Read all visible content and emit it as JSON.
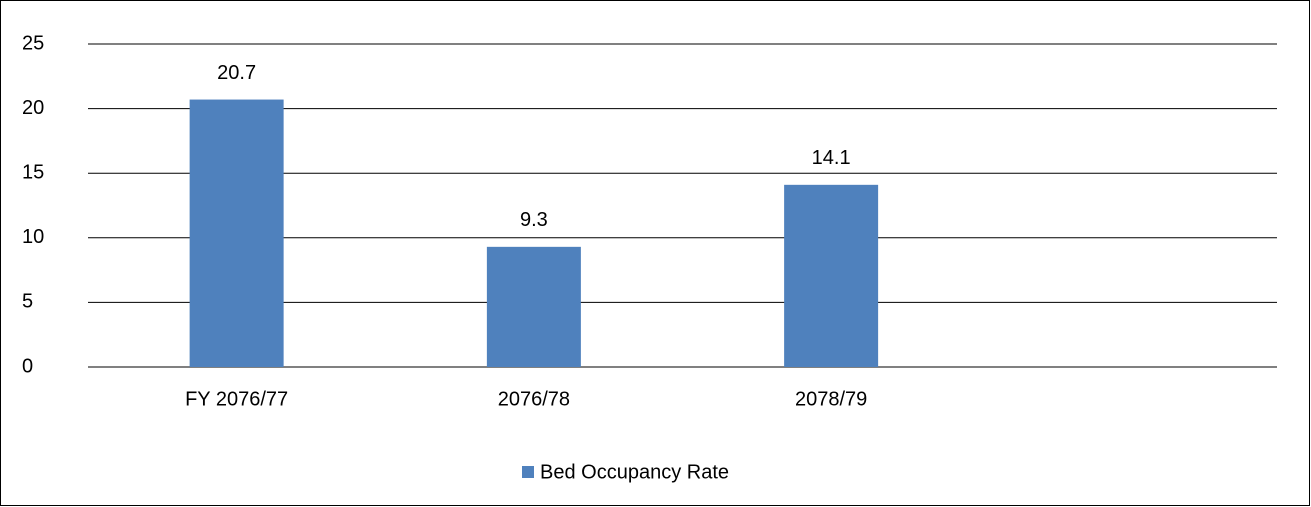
{
  "chart_data": {
    "type": "bar",
    "categories": [
      "FY 2076/77",
      "2076/78",
      "2078/79",
      null
    ],
    "series": [
      {
        "name": "Bed Occupancy Rate",
        "color": "#4f81bd",
        "values": [
          20.7,
          9.3,
          14.1,
          null
        ]
      }
    ],
    "ylim": [
      0,
      25
    ],
    "yticks": [
      0,
      5,
      10,
      15,
      20,
      25
    ],
    "grid": true,
    "legend": "bottom"
  }
}
